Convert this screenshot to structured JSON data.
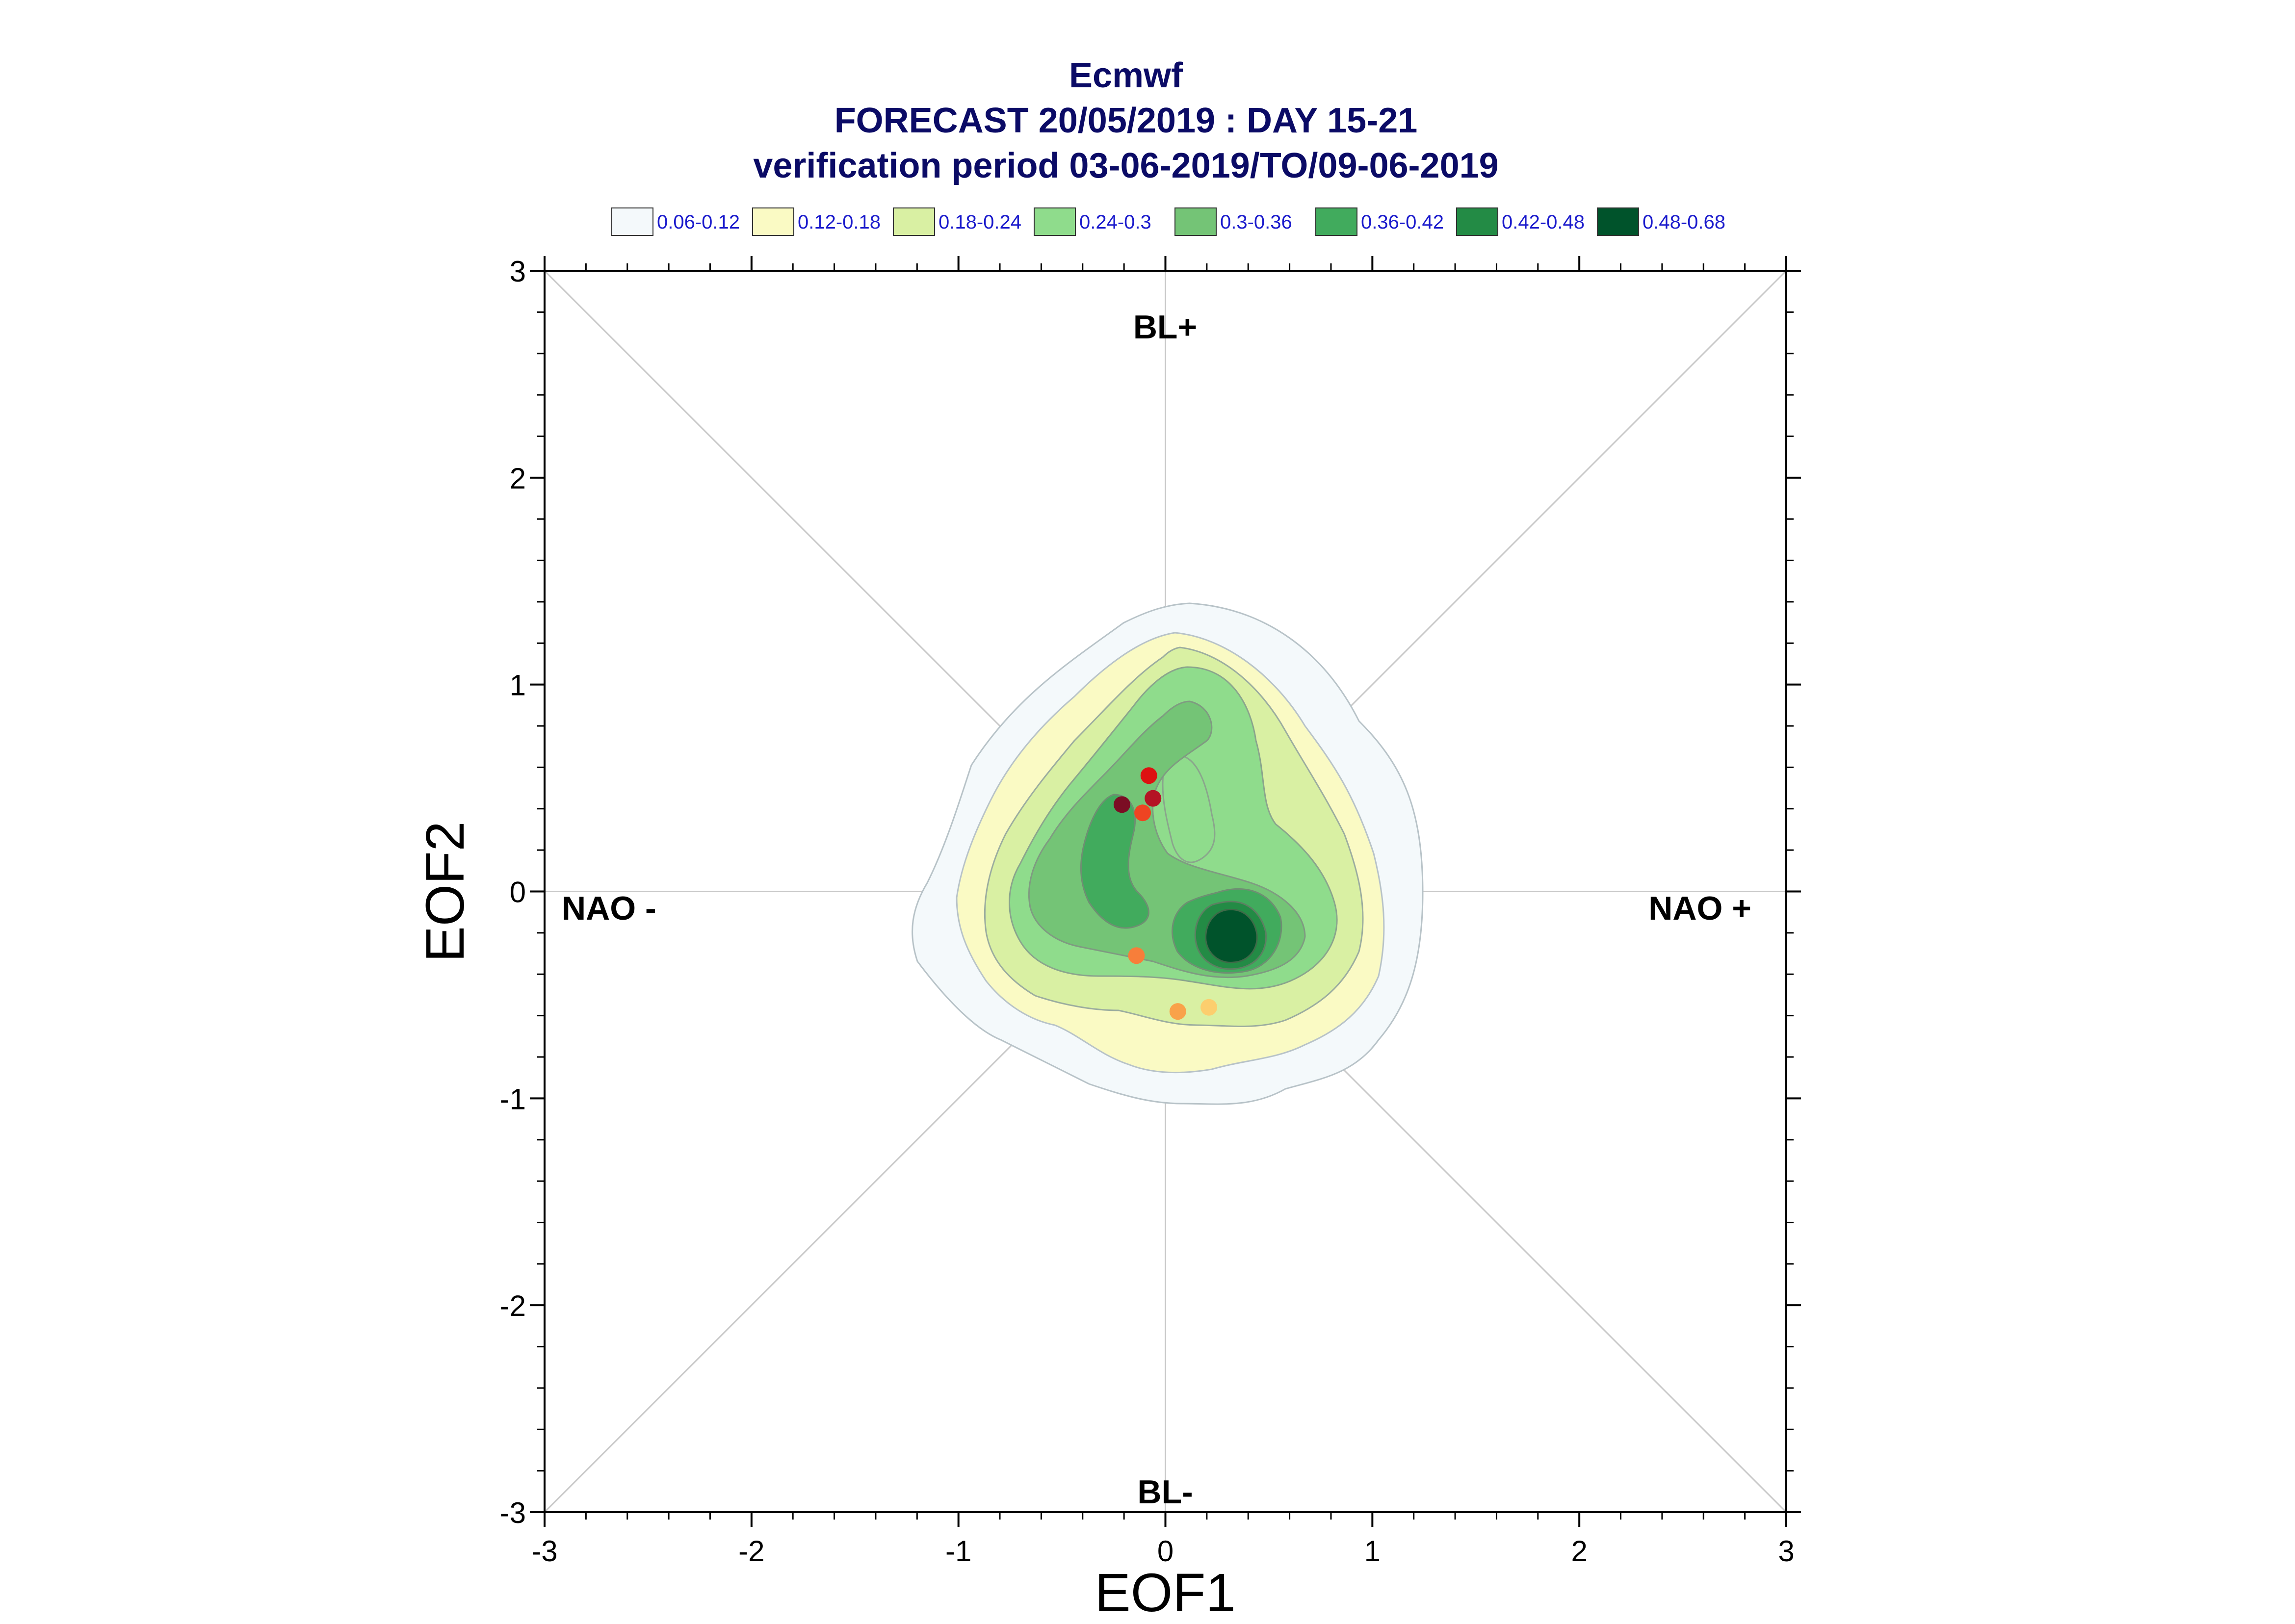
{
  "chart_data": {
    "type": "scatter",
    "title_lines": [
      "Ecmwf",
      "FORECAST 20/05/2019 : DAY 15-21",
      "verification period 03-06-2019/TO/09-06-2019"
    ],
    "xlabel": "EOF1",
    "ylabel": "EOF2",
    "xlim": [
      -3,
      3
    ],
    "ylim": [
      -3,
      3
    ],
    "xticks": [
      "-3",
      "-2",
      "-1",
      "0",
      "1",
      "2",
      "3"
    ],
    "yticks": [
      "-3",
      "-2",
      "-1",
      "0",
      "1",
      "2",
      "3"
    ],
    "regions": {
      "top": "BL+",
      "bottom": "BL-",
      "left": "NAO -",
      "right": "NAO +"
    },
    "legend": [
      {
        "label": "0.06-0.12",
        "color": "#f4f9fb"
      },
      {
        "label": "0.12-0.18",
        "color": "#fafac4"
      },
      {
        "label": "0.18-0.24",
        "color": "#d9f0a3"
      },
      {
        "label": "0.24-0.3",
        "color": "#8fdc8c"
      },
      {
        "label": "0.3-0.36",
        "color": "#74c476"
      },
      {
        "label": "0.36-0.42",
        "color": "#41ab5d"
      },
      {
        "label": "0.42-0.48",
        "color": "#238b45"
      },
      {
        "label": "0.48-0.68",
        "color": "#00532b"
      }
    ],
    "points": [
      {
        "x": -0.08,
        "y": 0.56,
        "color": "#dd1111"
      },
      {
        "x": -0.06,
        "y": 0.45,
        "color": "#b41424"
      },
      {
        "x": -0.21,
        "y": 0.42,
        "color": "#7b0d24"
      },
      {
        "x": -0.11,
        "y": 0.38,
        "color": "#ee4422"
      },
      {
        "x": -0.14,
        "y": -0.31,
        "color": "#f77e3a"
      },
      {
        "x": 0.06,
        "y": -0.58,
        "color": "#f9a24a"
      },
      {
        "x": 0.21,
        "y": -0.56,
        "color": "#fcce6e"
      }
    ]
  }
}
